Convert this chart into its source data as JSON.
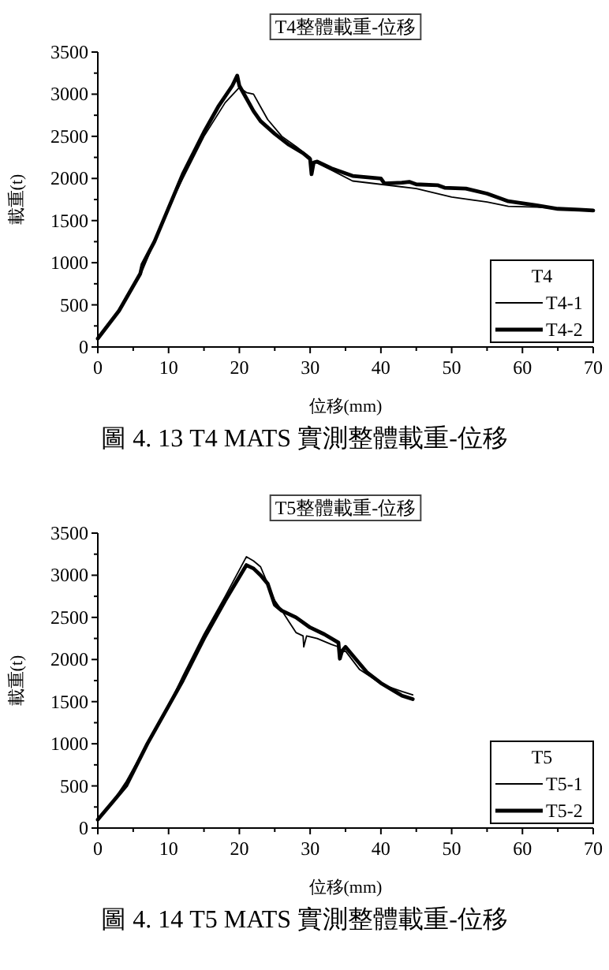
{
  "chart_data": [
    {
      "type": "line",
      "title": "T4整體載重-位移",
      "xlabel": "位移(mm)",
      "ylabel": "載重(t)",
      "legend_title": "T4",
      "legend": "bottom right",
      "grid": false,
      "xlim": [
        0,
        70
      ],
      "xticks": [
        0,
        {
          "value": 5,
          "label": null
        },
        10,
        {
          "value": 15,
          "label": null
        },
        20,
        {
          "value": 25,
          "label": null
        },
        30,
        {
          "value": 35,
          "label": null
        },
        40,
        {
          "value": 45,
          "label": null
        },
        50,
        {
          "value": 55,
          "label": null
        },
        60,
        {
          "value": 65,
          "label": null
        },
        70
      ],
      "ylim": [
        0,
        3500
      ],
      "yticks": [
        0,
        {
          "value": 250,
          "label": null
        },
        500,
        {
          "value": 750,
          "label": null
        },
        1000,
        {
          "value": 1250,
          "label": null
        },
        1500,
        {
          "value": 1750,
          "label": null
        },
        2000,
        {
          "value": 2250,
          "label": null
        },
        2500,
        {
          "value": 2750,
          "label": null
        },
        3000,
        {
          "value": 3250,
          "label": null
        },
        3500
      ],
      "annotations": [
        "圖 4. 13 T4 MATS 實測整體載重-位移"
      ],
      "series": [
        {
          "name": "T4-1",
          "color": "#000000",
          "x": [
            0,
            3,
            6,
            8,
            10,
            12,
            15,
            18,
            20,
            21,
            22,
            23,
            24,
            26,
            28,
            30,
            30.3,
            30.6,
            33,
            36,
            40,
            45,
            50,
            55,
            58,
            62,
            66,
            70
          ],
          "values": [
            100,
            430,
            850,
            1250,
            1650,
            2000,
            2500,
            2900,
            3080,
            3020,
            3000,
            2850,
            2700,
            2500,
            2380,
            2250,
            2100,
            2200,
            2100,
            1970,
            1930,
            1880,
            1780,
            1720,
            1670,
            1660,
            1640,
            1620
          ]
        },
        {
          "name": "T4-2",
          "color": "#000000",
          "x": [
            0,
            3,
            6,
            6.3,
            8,
            10,
            12,
            15,
            17,
            19,
            19.7,
            20,
            21,
            22,
            23,
            25,
            27,
            29,
            30,
            30.2,
            30.5,
            31,
            33,
            36,
            40,
            40.5,
            43,
            44,
            45,
            48,
            49,
            52,
            55,
            58,
            62,
            65,
            68,
            70
          ],
          "values": [
            100,
            430,
            870,
            980,
            1250,
            1650,
            2050,
            2550,
            2850,
            3100,
            3220,
            3100,
            2950,
            2800,
            2680,
            2530,
            2400,
            2300,
            2230,
            2050,
            2190,
            2200,
            2120,
            2030,
            2000,
            1940,
            1950,
            1960,
            1930,
            1920,
            1890,
            1880,
            1820,
            1730,
            1680,
            1640,
            1630,
            1620
          ]
        }
      ]
    },
    {
      "type": "line",
      "title": "T5整體載重-位移",
      "xlabel": "位移(mm)",
      "ylabel": "載重(t)",
      "legend_title": "T5",
      "legend": "bottom right",
      "grid": false,
      "xlim": [
        0,
        70
      ],
      "xticks": [
        0,
        {
          "value": 5,
          "label": null
        },
        10,
        {
          "value": 15,
          "label": null
        },
        20,
        {
          "value": 25,
          "label": null
        },
        30,
        {
          "value": 35,
          "label": null
        },
        40,
        {
          "value": 45,
          "label": null
        },
        50,
        {
          "value": 55,
          "label": null
        },
        60,
        {
          "value": 65,
          "label": null
        },
        70
      ],
      "ylim": [
        0,
        3500
      ],
      "yticks": [
        0,
        {
          "value": 250,
          "label": null
        },
        500,
        {
          "value": 750,
          "label": null
        },
        1000,
        {
          "value": 1250,
          "label": null
        },
        1500,
        {
          "value": 1750,
          "label": null
        },
        2000,
        {
          "value": 2250,
          "label": null
        },
        2500,
        {
          "value": 2750,
          "label": null
        },
        3000,
        {
          "value": 3250,
          "label": null
        },
        3500
      ],
      "annotations": [
        "圖 4. 14 T5 MATS 實測整體載重-位移"
      ],
      "series": [
        {
          "name": "T5-1",
          "color": "#000000",
          "x": [
            0,
            2,
            4,
            7,
            10,
            12,
            15,
            18,
            21,
            22,
            23,
            24,
            25,
            26,
            27,
            28,
            29,
            29.1,
            29.5,
            31,
            33,
            34,
            34.2,
            35,
            37,
            39,
            41,
            43,
            44.5
          ],
          "values": [
            100,
            300,
            550,
            1000,
            1450,
            1800,
            2300,
            2750,
            3220,
            3170,
            3100,
            2900,
            2700,
            2580,
            2450,
            2320,
            2280,
            2150,
            2280,
            2250,
            2180,
            2150,
            2080,
            2100,
            1880,
            1770,
            1680,
            1620,
            1580
          ]
        },
        {
          "name": "T5-2",
          "color": "#000000",
          "x": [
            0,
            2,
            4,
            7,
            10,
            12,
            15,
            18,
            21,
            22,
            23,
            24,
            25,
            26,
            28,
            30,
            32,
            34,
            34.2,
            34.5,
            35,
            36,
            38,
            40,
            42,
            43,
            44.5
          ],
          "values": [
            100,
            300,
            500,
            1000,
            1450,
            1750,
            2250,
            2700,
            3120,
            3080,
            3000,
            2900,
            2650,
            2580,
            2500,
            2380,
            2300,
            2200,
            2010,
            2100,
            2150,
            2050,
            1850,
            1720,
            1620,
            1570,
            1530
          ]
        }
      ]
    }
  ]
}
